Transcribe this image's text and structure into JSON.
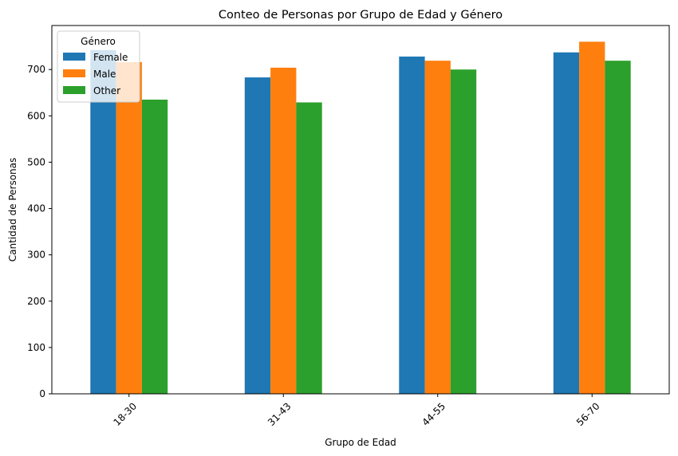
{
  "chart_data": {
    "type": "bar",
    "title": "Conteo de Personas por Grupo de Edad y Género",
    "xlabel": "Grupo de Edad",
    "ylabel": "Cantidad de Personas",
    "categories": [
      "18-30",
      "31-43",
      "44-55",
      "56-70"
    ],
    "series": [
      {
        "name": "Female",
        "color": "#1f77b4",
        "values": [
          742,
          683,
          728,
          737
        ]
      },
      {
        "name": "Male",
        "color": "#ff7f0e",
        "values": [
          716,
          704,
          719,
          760
        ]
      },
      {
        "name": "Other",
        "color": "#2ca02c",
        "values": [
          635,
          629,
          700,
          719
        ]
      }
    ],
    "ylim": [
      0,
      795
    ],
    "yticks": [
      0,
      100,
      200,
      300,
      400,
      500,
      600,
      700
    ],
    "xtick_rotation": 45,
    "legend": {
      "title": "Género",
      "placement": "top-left"
    },
    "grid": false
  }
}
